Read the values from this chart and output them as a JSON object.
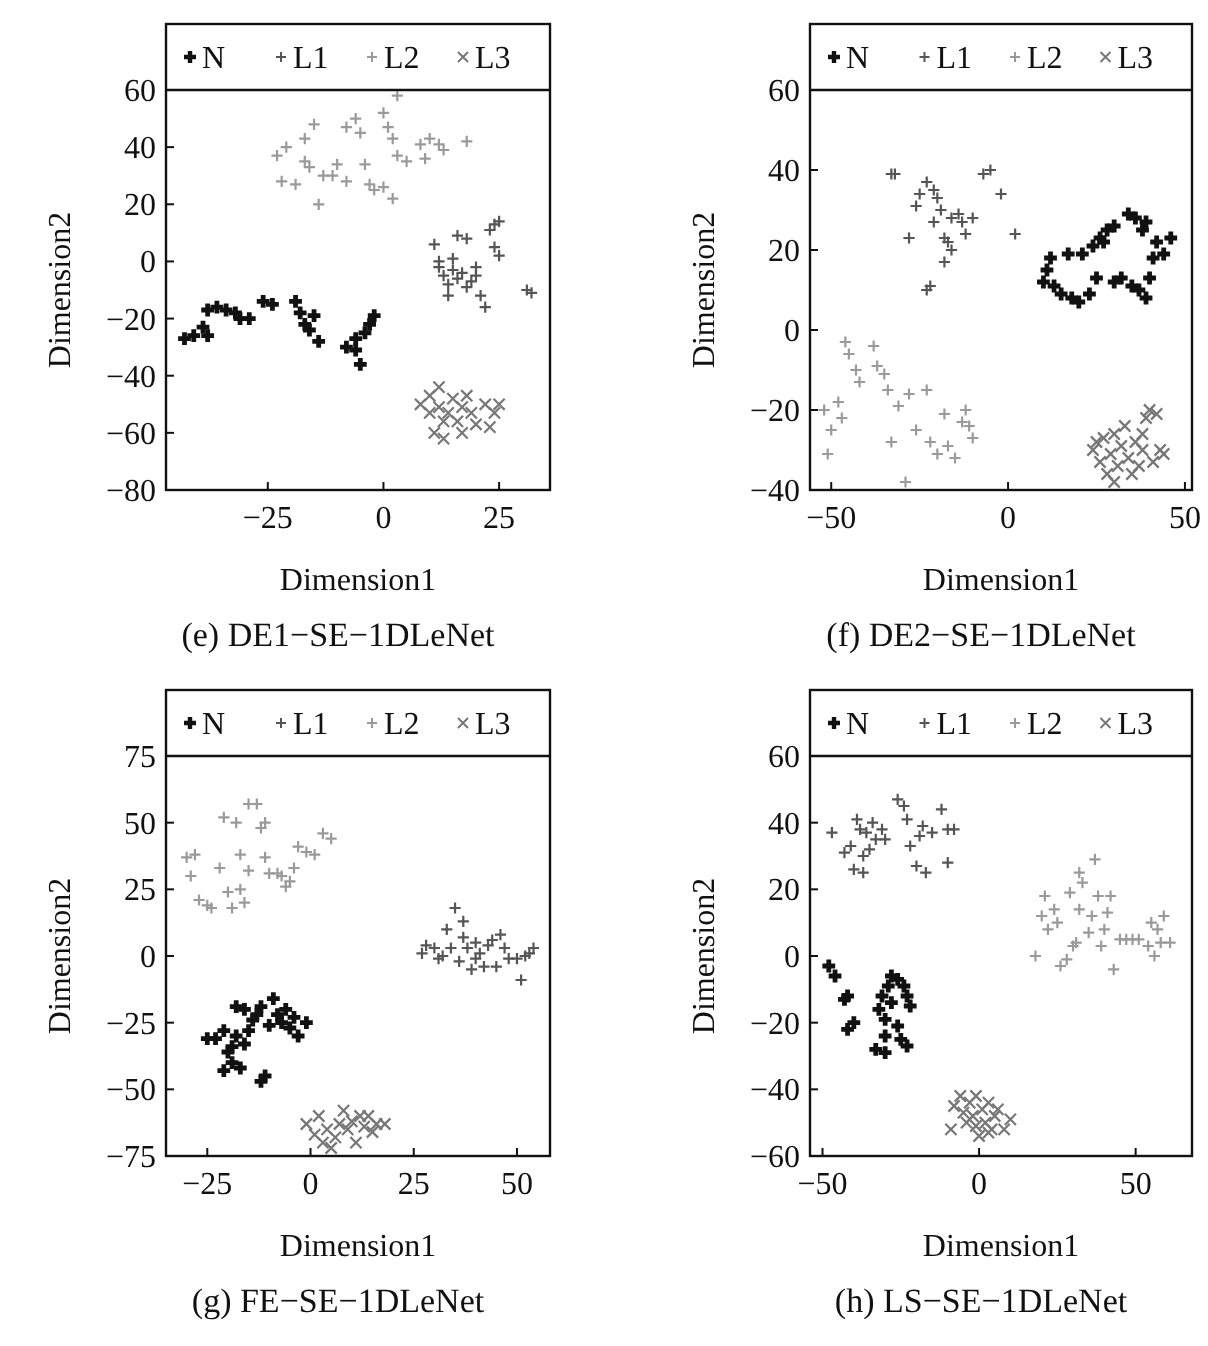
{
  "chart_data": [
    {
      "type": "scatter",
      "title": "(e) DE1−SE−1DLeNet",
      "xlabel": "Dimension1",
      "ylabel": "Dimension2",
      "xlim": [
        -47,
        36
      ],
      "ylim": [
        -80,
        60
      ],
      "xticks": [
        -25,
        0,
        25
      ],
      "yticks": [
        -80,
        -60,
        -40,
        -20,
        0,
        20,
        40,
        60
      ],
      "legend": "top",
      "grid": false,
      "series": [
        {
          "name": "N",
          "color": "#111111",
          "marker": "cross",
          "x": [
            -43,
            -41,
            -39,
            -38,
            -38,
            -36,
            -34,
            -32,
            -31,
            -29,
            -26,
            -24,
            -19,
            -18,
            -17,
            -16,
            -15,
            -14,
            -8,
            -6,
            -5,
            -4,
            -3,
            -2,
            -6
          ],
          "values": [
            -27,
            -26,
            -23,
            -26,
            -17,
            -16,
            -17,
            -18,
            -20,
            -20,
            -14,
            -15,
            -14,
            -18,
            -22,
            -24,
            -19,
            -28,
            -30,
            -31,
            -36,
            -25,
            -22,
            -19,
            -27
          ]
        },
        {
          "name": "L1",
          "color": "#555555",
          "marker": "cross",
          "x": [
            11,
            12,
            13,
            14,
            15,
            15,
            16,
            17,
            18,
            16,
            18,
            20,
            20,
            21,
            22,
            23,
            24,
            25,
            24,
            25,
            31,
            32,
            14,
            12,
            19
          ],
          "values": [
            6,
            -2,
            -5,
            -8,
            -3,
            1,
            -6,
            -4,
            -9,
            9,
            8,
            -2,
            -5,
            -12,
            -16,
            11,
            13,
            14,
            5,
            2,
            -10,
            -11,
            -12,
            0,
            -7
          ]
        },
        {
          "name": "L2",
          "color": "#9a9a9a",
          "marker": "cross",
          "x": [
            -23,
            -22,
            -21,
            -19,
            -17,
            -17,
            -16,
            -15,
            -14,
            -13,
            -11,
            -10,
            -8,
            -8,
            -6,
            -5,
            -4,
            -3,
            -2,
            0,
            0,
            1,
            2,
            2,
            3,
            3,
            5,
            8,
            9,
            10,
            12,
            18,
            13
          ],
          "values": [
            37,
            28,
            40,
            27,
            43,
            35,
            33,
            48,
            20,
            30,
            30,
            34,
            47,
            28,
            50,
            45,
            34,
            27,
            25,
            26,
            52,
            47,
            22,
            43,
            37,
            58,
            35,
            41,
            36,
            43,
            41,
            42,
            39
          ]
        },
        {
          "name": "L3",
          "color": "#777777",
          "marker": "x",
          "x": [
            8,
            10,
            10,
            11,
            12,
            12,
            13,
            14,
            15,
            16,
            17,
            18,
            19,
            20,
            22,
            23,
            24,
            25,
            13,
            17
          ],
          "values": [
            -50,
            -47,
            -53,
            -60,
            -44,
            -51,
            -56,
            -53,
            -48,
            -56,
            -51,
            -47,
            -53,
            -57,
            -50,
            -58,
            -53,
            -50,
            -62,
            -60
          ]
        }
      ]
    },
    {
      "type": "scatter",
      "title": "(f) DE2−SE−1DLeNet",
      "xlabel": "Dimension1",
      "ylabel": "Dimension2",
      "xlim": [
        -56,
        52
      ],
      "ylim": [
        -40,
        60
      ],
      "xticks": [
        -50,
        0,
        50
      ],
      "yticks": [
        -40,
        -20,
        0,
        20,
        40,
        60
      ],
      "legend": "top",
      "grid": false,
      "series": [
        {
          "name": "N",
          "color": "#111111",
          "marker": "cross",
          "x": [
            10,
            11,
            12,
            13,
            15,
            17,
            18,
            20,
            21,
            23,
            24,
            26,
            27,
            28,
            30,
            32,
            35,
            37,
            39,
            40,
            41,
            42,
            44,
            46,
            34,
            36,
            38,
            39,
            30,
            25
          ],
          "values": [
            12,
            15,
            18,
            11,
            9,
            19,
            8,
            7,
            19,
            9,
            21,
            23,
            22,
            25,
            26,
            13,
            11,
            10,
            8,
            13,
            18,
            22,
            19,
            23,
            29,
            28,
            25,
            27,
            12,
            13
          ]
        },
        {
          "name": "L1",
          "color": "#555555",
          "marker": "cross",
          "x": [
            -33,
            -32,
            -28,
            -26,
            -25,
            -23,
            -21,
            -20,
            -22,
            -23,
            -21,
            -19,
            -18,
            -18,
            -16,
            -16,
            -14,
            -13,
            -12,
            -10,
            -7,
            -5,
            -2,
            2,
            -17
          ],
          "values": [
            39,
            39,
            23,
            31,
            34,
            37,
            35,
            33,
            11,
            10,
            27,
            30,
            23,
            17,
            20,
            28,
            29,
            27,
            24,
            28,
            39,
            40,
            34,
            24,
            22
          ]
        },
        {
          "name": "L2",
          "color": "#9a9a9a",
          "marker": "cross",
          "x": [
            -52,
            -51,
            -50,
            -48,
            -47,
            -46,
            -45,
            -43,
            -42,
            -38,
            -37,
            -35,
            -34,
            -33,
            -31,
            -29,
            -28,
            -26,
            -23,
            -22,
            -20,
            -18,
            -17,
            -15,
            -12,
            -11,
            -10,
            -13
          ],
          "values": [
            -20,
            -31,
            -25,
            -18,
            -22,
            -3,
            -6,
            -10,
            -13,
            -4,
            -9,
            -11,
            -15,
            -28,
            -19,
            -38,
            -16,
            -25,
            -15,
            -28,
            -31,
            -21,
            -29,
            -32,
            -20,
            -24,
            -27,
            -23
          ]
        },
        {
          "name": "L3",
          "color": "#777777",
          "marker": "x",
          "x": [
            24,
            25,
            26,
            27,
            28,
            29,
            30,
            31,
            32,
            33,
            34,
            35,
            36,
            37,
            38,
            39,
            40,
            41,
            42,
            43,
            44,
            30,
            38
          ],
          "values": [
            -30,
            -28,
            -33,
            -27,
            -36,
            -31,
            -26,
            -34,
            -29,
            -24,
            -32,
            -36,
            -28,
            -34,
            -30,
            -22,
            -20,
            -33,
            -21,
            -30,
            -31,
            -38,
            -26
          ]
        }
      ]
    },
    {
      "type": "scatter",
      "title": "(g) FE−SE−1DLeNet",
      "xlabel": "Dimension1",
      "ylabel": "Dimension2",
      "xlim": [
        -35,
        58
      ],
      "ylim": [
        -75,
        75
      ],
      "xticks": [
        -25,
        0,
        25,
        50
      ],
      "yticks": [
        -75,
        -50,
        -25,
        0,
        25,
        50,
        75
      ],
      "legend": "top",
      "grid": false,
      "series": [
        {
          "name": "N",
          "color": "#111111",
          "marker": "cross",
          "x": [
            -25,
            -23,
            -21,
            -21,
            -20,
            -19,
            -18,
            -18,
            -17,
            -16,
            -15,
            -14,
            -13,
            -12,
            -12,
            -11,
            -10,
            -9,
            -8,
            -7,
            -6,
            -5,
            -4,
            -3,
            -1,
            -19,
            -16
          ],
          "values": [
            -31,
            -31,
            -28,
            -43,
            -36,
            -40,
            -19,
            -30,
            -42,
            -20,
            -28,
            -24,
            -22,
            -19,
            -47,
            -45,
            -26,
            -16,
            -22,
            -25,
            -20,
            -27,
            -23,
            -30,
            -25,
            -34,
            -33
          ]
        },
        {
          "name": "L1",
          "color": "#555555",
          "marker": "cross",
          "x": [
            27,
            28,
            30,
            31,
            32,
            33,
            34,
            35,
            36,
            37,
            37,
            38,
            39,
            40,
            41,
            42,
            43,
            44,
            45,
            46,
            47,
            48,
            50,
            51,
            52,
            53,
            54,
            40
          ],
          "values": [
            1,
            4,
            3,
            -1,
            0,
            10,
            3,
            18,
            -2,
            13,
            7,
            3,
            -5,
            5,
            1,
            -4,
            4,
            6,
            -4,
            8,
            3,
            -1,
            -1,
            -9,
            0,
            1,
            3,
            -1
          ]
        },
        {
          "name": "L2",
          "color": "#9a9a9a",
          "marker": "cross",
          "x": [
            -30,
            -29,
            -28,
            -27,
            -25,
            -24,
            -22,
            -21,
            -20,
            -19,
            -18,
            -17,
            -17,
            -16,
            -15,
            -15,
            -13,
            -12,
            -11,
            -11,
            -10,
            -8,
            -7,
            -6,
            -5,
            -4,
            -3,
            -1,
            1,
            3,
            5
          ],
          "values": [
            37,
            30,
            38,
            21,
            19,
            18,
            33,
            52,
            24,
            18,
            50,
            38,
            25,
            20,
            32,
            57,
            57,
            48,
            50,
            37,
            31,
            31,
            30,
            26,
            28,
            33,
            41,
            39,
            38,
            46,
            44
          ]
        },
        {
          "name": "L3",
          "color": "#777777",
          "marker": "x",
          "x": [
            -1,
            1,
            2,
            3,
            4,
            5,
            6,
            8,
            9,
            10,
            11,
            12,
            13,
            14,
            15,
            16,
            18,
            7
          ],
          "values": [
            -63,
            -67,
            -60,
            -70,
            -65,
            -72,
            -68,
            -58,
            -65,
            -62,
            -70,
            -60,
            -64,
            -60,
            -66,
            -63,
            -63,
            -63
          ]
        }
      ]
    },
    {
      "type": "scatter",
      "title": "(h) LS−SE−1DLeNet",
      "xlabel": "Dimension1",
      "ylabel": "Dimension2",
      "xlim": [
        -54,
        68
      ],
      "ylim": [
        -60,
        60
      ],
      "xticks": [
        -50,
        0,
        50
      ],
      "yticks": [
        -60,
        -40,
        -20,
        0,
        20,
        40,
        60
      ],
      "legend": "top",
      "grid": false,
      "series": [
        {
          "name": "N",
          "color": "#111111",
          "marker": "cross",
          "x": [
            -48,
            -46,
            -43,
            -42,
            -42,
            -40,
            -32,
            -31,
            -30,
            -30,
            -29,
            -28,
            -26,
            -25,
            -24,
            -23,
            -23,
            -22,
            -28,
            -26,
            -33,
            -30
          ],
          "values": [
            -3,
            -6,
            -13,
            -12,
            -22,
            -20,
            -16,
            -12,
            -29,
            -19,
            -9,
            -6,
            -7,
            -25,
            -9,
            -27,
            -12,
            -15,
            -14,
            -21,
            -28,
            -24
          ]
        },
        {
          "name": "L1",
          "color": "#555555",
          "marker": "cross",
          "x": [
            -47,
            -43,
            -41,
            -40,
            -39,
            -38,
            -37,
            -36,
            -35,
            -34,
            -33,
            -31,
            -30,
            -26,
            -24,
            -23,
            -22,
            -20,
            -19,
            -18,
            -17,
            -15,
            -12,
            -10,
            -8,
            -10,
            -37
          ],
          "values": [
            37,
            31,
            33,
            26,
            41,
            38,
            30,
            37,
            32,
            40,
            35,
            38,
            35,
            47,
            45,
            41,
            33,
            27,
            36,
            39,
            25,
            37,
            44,
            38,
            38,
            28,
            25
          ]
        },
        {
          "name": "L2",
          "color": "#9a9a9a",
          "marker": "cross",
          "x": [
            18,
            20,
            21,
            22,
            24,
            25,
            26,
            28,
            29,
            30,
            31,
            32,
            32,
            33,
            35,
            36,
            37,
            38,
            39,
            40,
            41,
            42,
            43,
            45,
            47,
            49,
            51,
            54,
            56,
            57,
            58,
            59,
            61,
            55
          ],
          "values": [
            0,
            12,
            18,
            8,
            14,
            10,
            -3,
            -1,
            19,
            3,
            4,
            14,
            25,
            22,
            7,
            12,
            29,
            18,
            3,
            8,
            13,
            18,
            -4,
            5,
            5,
            5,
            5,
            3,
            0,
            8,
            4,
            12,
            4,
            10
          ]
        },
        {
          "name": "L3",
          "color": "#777777",
          "marker": "x",
          "x": [
            -9,
            -8,
            -6,
            -5,
            -4,
            -3,
            -2,
            -1,
            0,
            1,
            2,
            3,
            4,
            5,
            6,
            8,
            10,
            -1,
            3
          ],
          "values": [
            -52,
            -45,
            -42,
            -47,
            -50,
            -44,
            -48,
            -42,
            -54,
            -46,
            -50,
            -44,
            -52,
            -48,
            -46,
            -52,
            -49,
            -51,
            -53
          ]
        }
      ]
    }
  ]
}
